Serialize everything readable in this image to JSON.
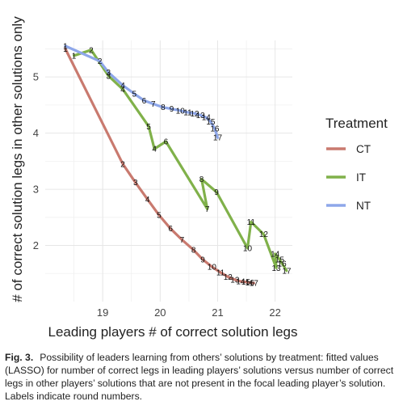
{
  "chart_data": {
    "type": "line",
    "xlabel": "Leading players # of correct solution legs",
    "ylabel": "# of correct solution legs in other solutions only",
    "xlim": [
      18.0,
      22.3
    ],
    "ylim": [
      1.0,
      5.65
    ],
    "x_ticks": [
      19,
      20,
      21,
      22
    ],
    "y_ticks": [
      2,
      3,
      4,
      5
    ],
    "grid": true,
    "legend": {
      "title": "Treatment",
      "position": "right",
      "entries": [
        "CT",
        "IT",
        "NT"
      ]
    },
    "series": [
      {
        "name": "CT",
        "color": "#c97a6f",
        "points": [
          {
            "label": "1",
            "x": 18.35,
            "y": 5.5
          },
          {
            "label": "2",
            "x": 19.35,
            "y": 3.45
          },
          {
            "label": "3",
            "x": 19.57,
            "y": 3.12
          },
          {
            "label": "4",
            "x": 19.78,
            "y": 2.82
          },
          {
            "label": "5",
            "x": 19.98,
            "y": 2.54
          },
          {
            "label": "6",
            "x": 20.18,
            "y": 2.3
          },
          {
            "label": "7",
            "x": 20.38,
            "y": 2.1
          },
          {
            "label": "8",
            "x": 20.58,
            "y": 1.92
          },
          {
            "label": "9",
            "x": 20.74,
            "y": 1.75
          },
          {
            "label": "10",
            "x": 20.9,
            "y": 1.62
          },
          {
            "label": "11",
            "x": 21.05,
            "y": 1.52
          },
          {
            "label": "12",
            "x": 21.18,
            "y": 1.44
          },
          {
            "label": "13",
            "x": 21.3,
            "y": 1.39
          },
          {
            "label": "14",
            "x": 21.4,
            "y": 1.36
          },
          {
            "label": "15",
            "x": 21.49,
            "y": 1.35
          },
          {
            "label": "16",
            "x": 21.56,
            "y": 1.34
          },
          {
            "label": "17",
            "x": 21.63,
            "y": 1.33
          }
        ]
      },
      {
        "name": "IT",
        "color": "#80b14a",
        "points": [
          {
            "label": "1",
            "x": 18.5,
            "y": 5.38
          },
          {
            "label": "2",
            "x": 18.8,
            "y": 5.48
          },
          {
            "label": "3",
            "x": 19.1,
            "y": 5.02
          },
          {
            "label": "4",
            "x": 19.35,
            "y": 4.78
          },
          {
            "label": "5",
            "x": 19.8,
            "y": 4.12
          },
          {
            "label": "4",
            "x": 19.9,
            "y": 3.72
          },
          {
            "label": "6",
            "x": 20.1,
            "y": 3.85
          },
          {
            "label": "7",
            "x": 20.82,
            "y": 2.65
          },
          {
            "label": "8",
            "x": 20.72,
            "y": 3.18
          },
          {
            "label": "9",
            "x": 20.98,
            "y": 2.95
          },
          {
            "label": "10",
            "x": 21.52,
            "y": 1.95
          },
          {
            "label": "11",
            "x": 21.58,
            "y": 2.42
          },
          {
            "label": "12",
            "x": 21.8,
            "y": 2.2
          },
          {
            "label": "13",
            "x": 22.02,
            "y": 1.6
          },
          {
            "label": "14",
            "x": 22.0,
            "y": 1.85
          },
          {
            "label": "15",
            "x": 22.08,
            "y": 1.75
          },
          {
            "label": "16",
            "x": 22.12,
            "y": 1.68
          },
          {
            "label": "17",
            "x": 22.2,
            "y": 1.55
          }
        ]
      },
      {
        "name": "NT",
        "color": "#8ea7ea",
        "points": [
          {
            "label": "1",
            "x": 18.35,
            "y": 5.55
          },
          {
            "label": "2",
            "x": 18.95,
            "y": 5.28
          },
          {
            "label": "3",
            "x": 19.1,
            "y": 5.08
          },
          {
            "label": "4",
            "x": 19.35,
            "y": 4.85
          },
          {
            "label": "5",
            "x": 19.55,
            "y": 4.7
          },
          {
            "label": "6",
            "x": 19.72,
            "y": 4.58
          },
          {
            "label": "7",
            "x": 19.88,
            "y": 4.52
          },
          {
            "label": "8",
            "x": 20.05,
            "y": 4.46
          },
          {
            "label": "9",
            "x": 20.2,
            "y": 4.43
          },
          {
            "label": "10",
            "x": 20.35,
            "y": 4.4
          },
          {
            "label": "11",
            "x": 20.48,
            "y": 4.37
          },
          {
            "label": "12",
            "x": 20.6,
            "y": 4.35
          },
          {
            "label": "13",
            "x": 20.7,
            "y": 4.32
          },
          {
            "label": "14",
            "x": 20.8,
            "y": 4.28
          },
          {
            "label": "15",
            "x": 20.88,
            "y": 4.2
          },
          {
            "label": "16",
            "x": 20.95,
            "y": 4.08
          },
          {
            "label": "17",
            "x": 21.0,
            "y": 3.92
          }
        ]
      }
    ]
  },
  "caption": {
    "figure": "Fig. 3.",
    "text": "Possibility of leaders learning from others’ solutions by treatment: fitted values (LASSO) for number of correct legs in leading players’ solutions versus number of correct legs in other players’ solutions that are not present in the focal leading player’s solution. Labels indicate round numbers."
  }
}
